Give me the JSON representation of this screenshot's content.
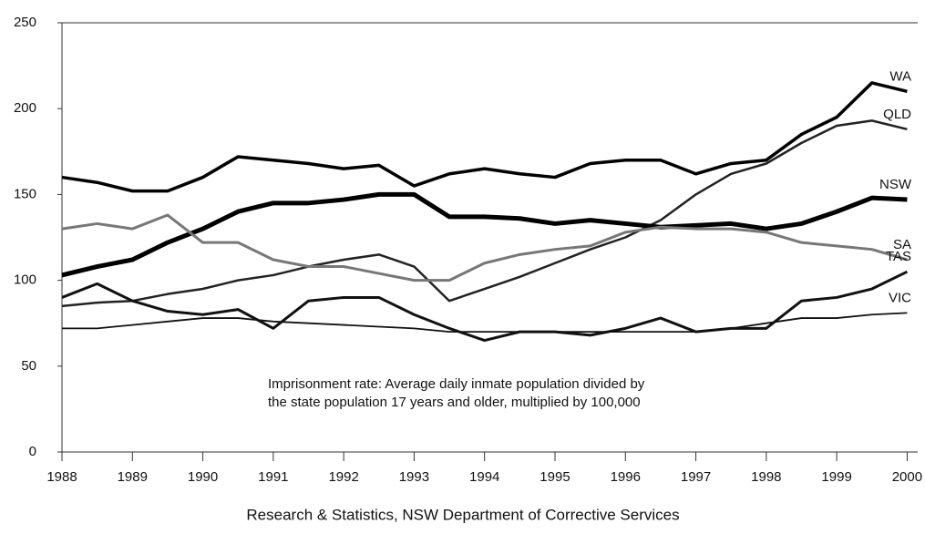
{
  "chart_data": {
    "type": "line",
    "x": [
      1988,
      1988.5,
      1989,
      1989.5,
      1990,
      1990.5,
      1991,
      1991.5,
      1992,
      1992.5,
      1993,
      1993.5,
      1994,
      1994.5,
      1995,
      1995.5,
      1996,
      1996.5,
      1997,
      1997.5,
      1998,
      1998.5,
      1999,
      1999.5,
      2000
    ],
    "xlim": [
      1988,
      2000.15
    ],
    "xticks": [
      1988,
      1989,
      1990,
      1991,
      1992,
      1993,
      1994,
      1995,
      1996,
      1997,
      1998,
      1999,
      2000
    ],
    "ylim": [
      0,
      250
    ],
    "yticks": [
      0,
      50,
      100,
      150,
      200,
      250
    ],
    "annotation": [
      "Imprisonment rate: Average daily inmate population divided by",
      "the state population 17 years and older, multiplied by 100,000"
    ],
    "footer": "Research & Statistics, NSW Department of Corrective Services",
    "series": [
      {
        "name": "WA",
        "color": "#000000",
        "line_width": 3.5,
        "values": [
          160,
          157,
          152,
          152,
          160,
          172,
          170,
          168,
          165,
          167,
          155,
          162,
          165,
          162,
          160,
          168,
          170,
          170,
          162,
          168,
          170,
          185,
          195,
          215,
          210
        ]
      },
      {
        "name": "QLD",
        "color": "#222222",
        "line_width": 2.5,
        "values": [
          85,
          87,
          88,
          92,
          95,
          100,
          103,
          108,
          112,
          115,
          108,
          88,
          95,
          102,
          110,
          118,
          125,
          135,
          150,
          162,
          168,
          180,
          190,
          193,
          188
        ]
      },
      {
        "name": "NSW",
        "color": "#000000",
        "line_width": 5,
        "values": [
          103,
          108,
          112,
          122,
          130,
          140,
          145,
          145,
          147,
          150,
          150,
          137,
          137,
          136,
          133,
          135,
          133,
          131,
          132,
          133,
          130,
          133,
          140,
          148,
          147
        ]
      },
      {
        "name": "SA",
        "color": "#777777",
        "line_width": 3,
        "values": [
          130,
          133,
          130,
          138,
          122,
          122,
          112,
          108,
          108,
          104,
          100,
          100,
          110,
          115,
          118,
          120,
          128,
          131,
          130,
          130,
          128,
          122,
          120,
          118,
          112
        ]
      },
      {
        "name": "TAS",
        "color": "#111111",
        "line_width": 3,
        "values": [
          90,
          98,
          88,
          82,
          80,
          83,
          72,
          88,
          90,
          90,
          80,
          72,
          65,
          70,
          70,
          68,
          72,
          78,
          70,
          72,
          72,
          88,
          90,
          95,
          105
        ]
      },
      {
        "name": "VIC",
        "color": "#111111",
        "line_width": 1.8,
        "values": [
          72,
          72,
          74,
          76,
          78,
          78,
          76,
          75,
          74,
          73,
          72,
          70,
          70,
          70,
          70,
          70,
          70,
          70,
          70,
          72,
          75,
          78,
          78,
          80,
          81
        ]
      }
    ]
  }
}
